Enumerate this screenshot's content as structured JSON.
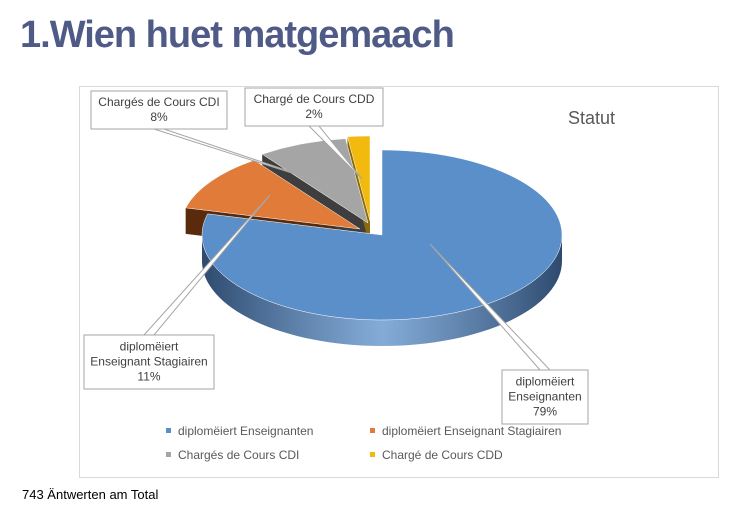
{
  "page": {
    "title": "1.Wien huet matgemaach",
    "footer": "743 Äntwerten am Total"
  },
  "chart_data": {
    "type": "pie",
    "title": "Statut",
    "labels": [
      "diplomëiert Enseignanten",
      "diplomëiert Enseignant Stagiairen",
      "Chargés de Cours  CDI",
      "Chargé de Cours  CDD"
    ],
    "values": [
      79,
      11,
      8,
      2
    ],
    "value_labels": [
      "79%",
      "11%",
      "8%",
      "2%"
    ],
    "callout_labels": [
      [
        "diplomëiert",
        "Enseignanten",
        "79%"
      ],
      [
        "diplomëiert",
        "Enseignant Stagiairen",
        "11%"
      ],
      [
        "Chargés de Cours  CDI",
        "8%"
      ],
      [
        "Chargé de Cours  CDD",
        "2%"
      ]
    ],
    "colors": [
      "#5b8fc9",
      "#e07b39",
      "#a5a5a5",
      "#f2b90f"
    ],
    "side_colors": [
      "#2e4a6e",
      "#5a2a0c",
      "#3e3e3e",
      "#8a6a08"
    ],
    "legend_position": "bottom",
    "style": "3d-exploded"
  }
}
